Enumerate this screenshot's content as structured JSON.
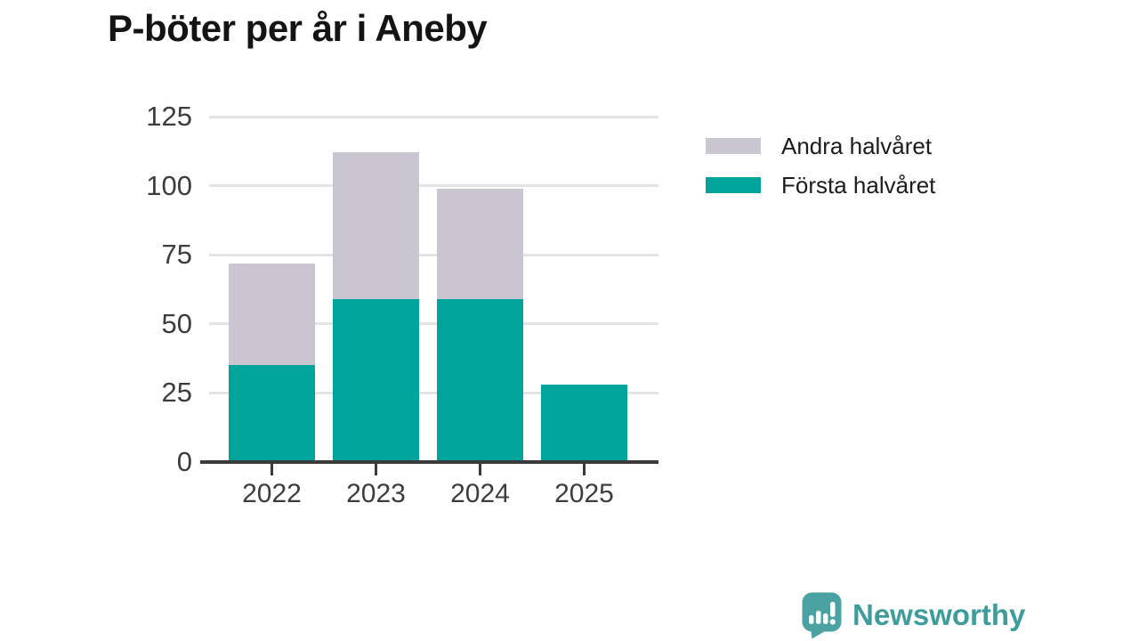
{
  "title": "P-böter per år i Aneby",
  "chart_data": {
    "type": "bar",
    "stacked": true,
    "title": "P-böter per år i Aneby",
    "categories": [
      "2022",
      "2023",
      "2024",
      "2025"
    ],
    "series": [
      {
        "name": "Första halvåret",
        "color": "#00a49a",
        "values": [
          35,
          59,
          59,
          28
        ]
      },
      {
        "name": "Andra halvåret",
        "color": "#c9c6d2",
        "values": [
          37,
          53,
          40,
          0
        ]
      }
    ],
    "totals": [
      72,
      112,
      99,
      28
    ],
    "xlabel": "",
    "ylabel": "",
    "ylim": [
      0,
      125
    ],
    "yticks": [
      0,
      25,
      50,
      75,
      100,
      125
    ],
    "grid": true,
    "legend_position": "right-top",
    "legend_order_top_to_bottom": [
      "Andra halvåret",
      "Första halvåret"
    ]
  },
  "legend": {
    "items": [
      {
        "label": "Andra halvåret"
      },
      {
        "label": "Första halvåret"
      }
    ]
  },
  "branding": {
    "name": "Newsworthy",
    "wordmark_color": "#3f9c9c",
    "icon": "bar-chart-speech-bubble-icon",
    "icon_color": "#4aa2a2"
  },
  "colors": {
    "background": "#ffffff",
    "gridline": "#e4e4e6",
    "axis": "#3a3a3a",
    "title_text": "#141414",
    "tick_text": "#3d3d3d",
    "legend_text": "#1c1c1c"
  }
}
